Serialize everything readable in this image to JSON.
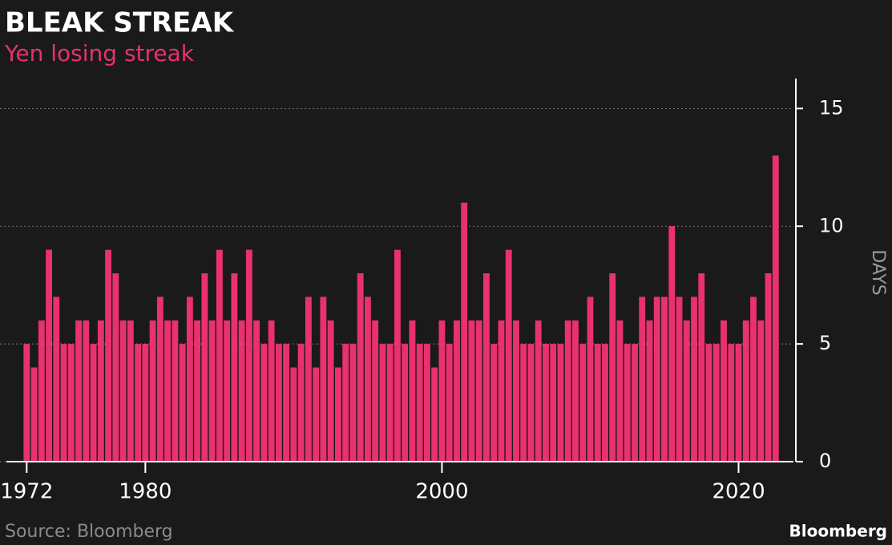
{
  "chart_data": {
    "type": "bar",
    "title": "BLEAK STREAK",
    "subtitle": "Yen losing streak",
    "y_label": "DAYS",
    "source": "Source: Bloomberg",
    "brand": "Bloomberg",
    "color": "#e8316e",
    "grid": true,
    "xlim": [
      1970.2,
      2023.7
    ],
    "xticks": [
      1972,
      1980,
      2000,
      2020
    ],
    "ylim": [
      0,
      16
    ],
    "yticks": [
      0,
      5,
      10,
      15
    ],
    "x": [
      1972,
      1972.5,
      1973,
      1973.5,
      1974,
      1974.5,
      1975,
      1975.5,
      1976,
      1976.5,
      1977,
      1977.5,
      1978,
      1978.5,
      1979,
      1979.5,
      1980,
      1980.5,
      1981,
      1981.5,
      1982,
      1982.5,
      1983,
      1983.5,
      1984,
      1984.5,
      1985,
      1985.5,
      1986,
      1986.5,
      1987,
      1987.5,
      1988,
      1988.5,
      1989,
      1989.5,
      1990,
      1990.5,
      1991,
      1991.5,
      1992,
      1992.5,
      1993,
      1993.5,
      1994,
      1994.5,
      1995,
      1995.5,
      1996,
      1996.5,
      1997,
      1997.5,
      1998,
      1998.5,
      1999,
      1999.5,
      2000,
      2000.5,
      2001,
      2001.5,
      2002,
      2002.5,
      2003,
      2003.5,
      2004,
      2004.5,
      2005,
      2005.5,
      2006,
      2006.5,
      2007,
      2007.5,
      2008,
      2008.5,
      2009,
      2009.5,
      2010,
      2010.5,
      2011,
      2011.5,
      2012,
      2012.5,
      2013,
      2013.5,
      2014,
      2014.5,
      2015,
      2015.5,
      2016,
      2016.5,
      2017,
      2017.5,
      2018,
      2018.5,
      2019,
      2019.5,
      2020,
      2020.5,
      2021,
      2021.5,
      2022,
      2022.5
    ],
    "values": [
      5,
      4,
      6,
      9,
      7,
      5,
      5,
      6,
      6,
      5,
      6,
      9,
      8,
      6,
      6,
      5,
      5,
      6,
      7,
      6,
      6,
      5,
      7,
      6,
      8,
      6,
      9,
      6,
      8,
      6,
      9,
      6,
      5,
      6,
      5,
      5,
      4,
      5,
      7,
      4,
      7,
      6,
      4,
      5,
      5,
      8,
      7,
      6,
      5,
      5,
      9,
      5,
      6,
      5,
      5,
      4,
      6,
      5,
      6,
      11,
      6,
      6,
      8,
      5,
      6,
      9,
      6,
      5,
      5,
      6,
      5,
      5,
      5,
      6,
      6,
      5,
      7,
      5,
      5,
      8,
      6,
      5,
      5,
      7,
      6,
      7,
      7,
      10,
      7,
      6,
      7,
      8,
      5,
      5,
      6,
      5,
      5,
      6,
      7,
      6,
      8,
      13
    ]
  }
}
